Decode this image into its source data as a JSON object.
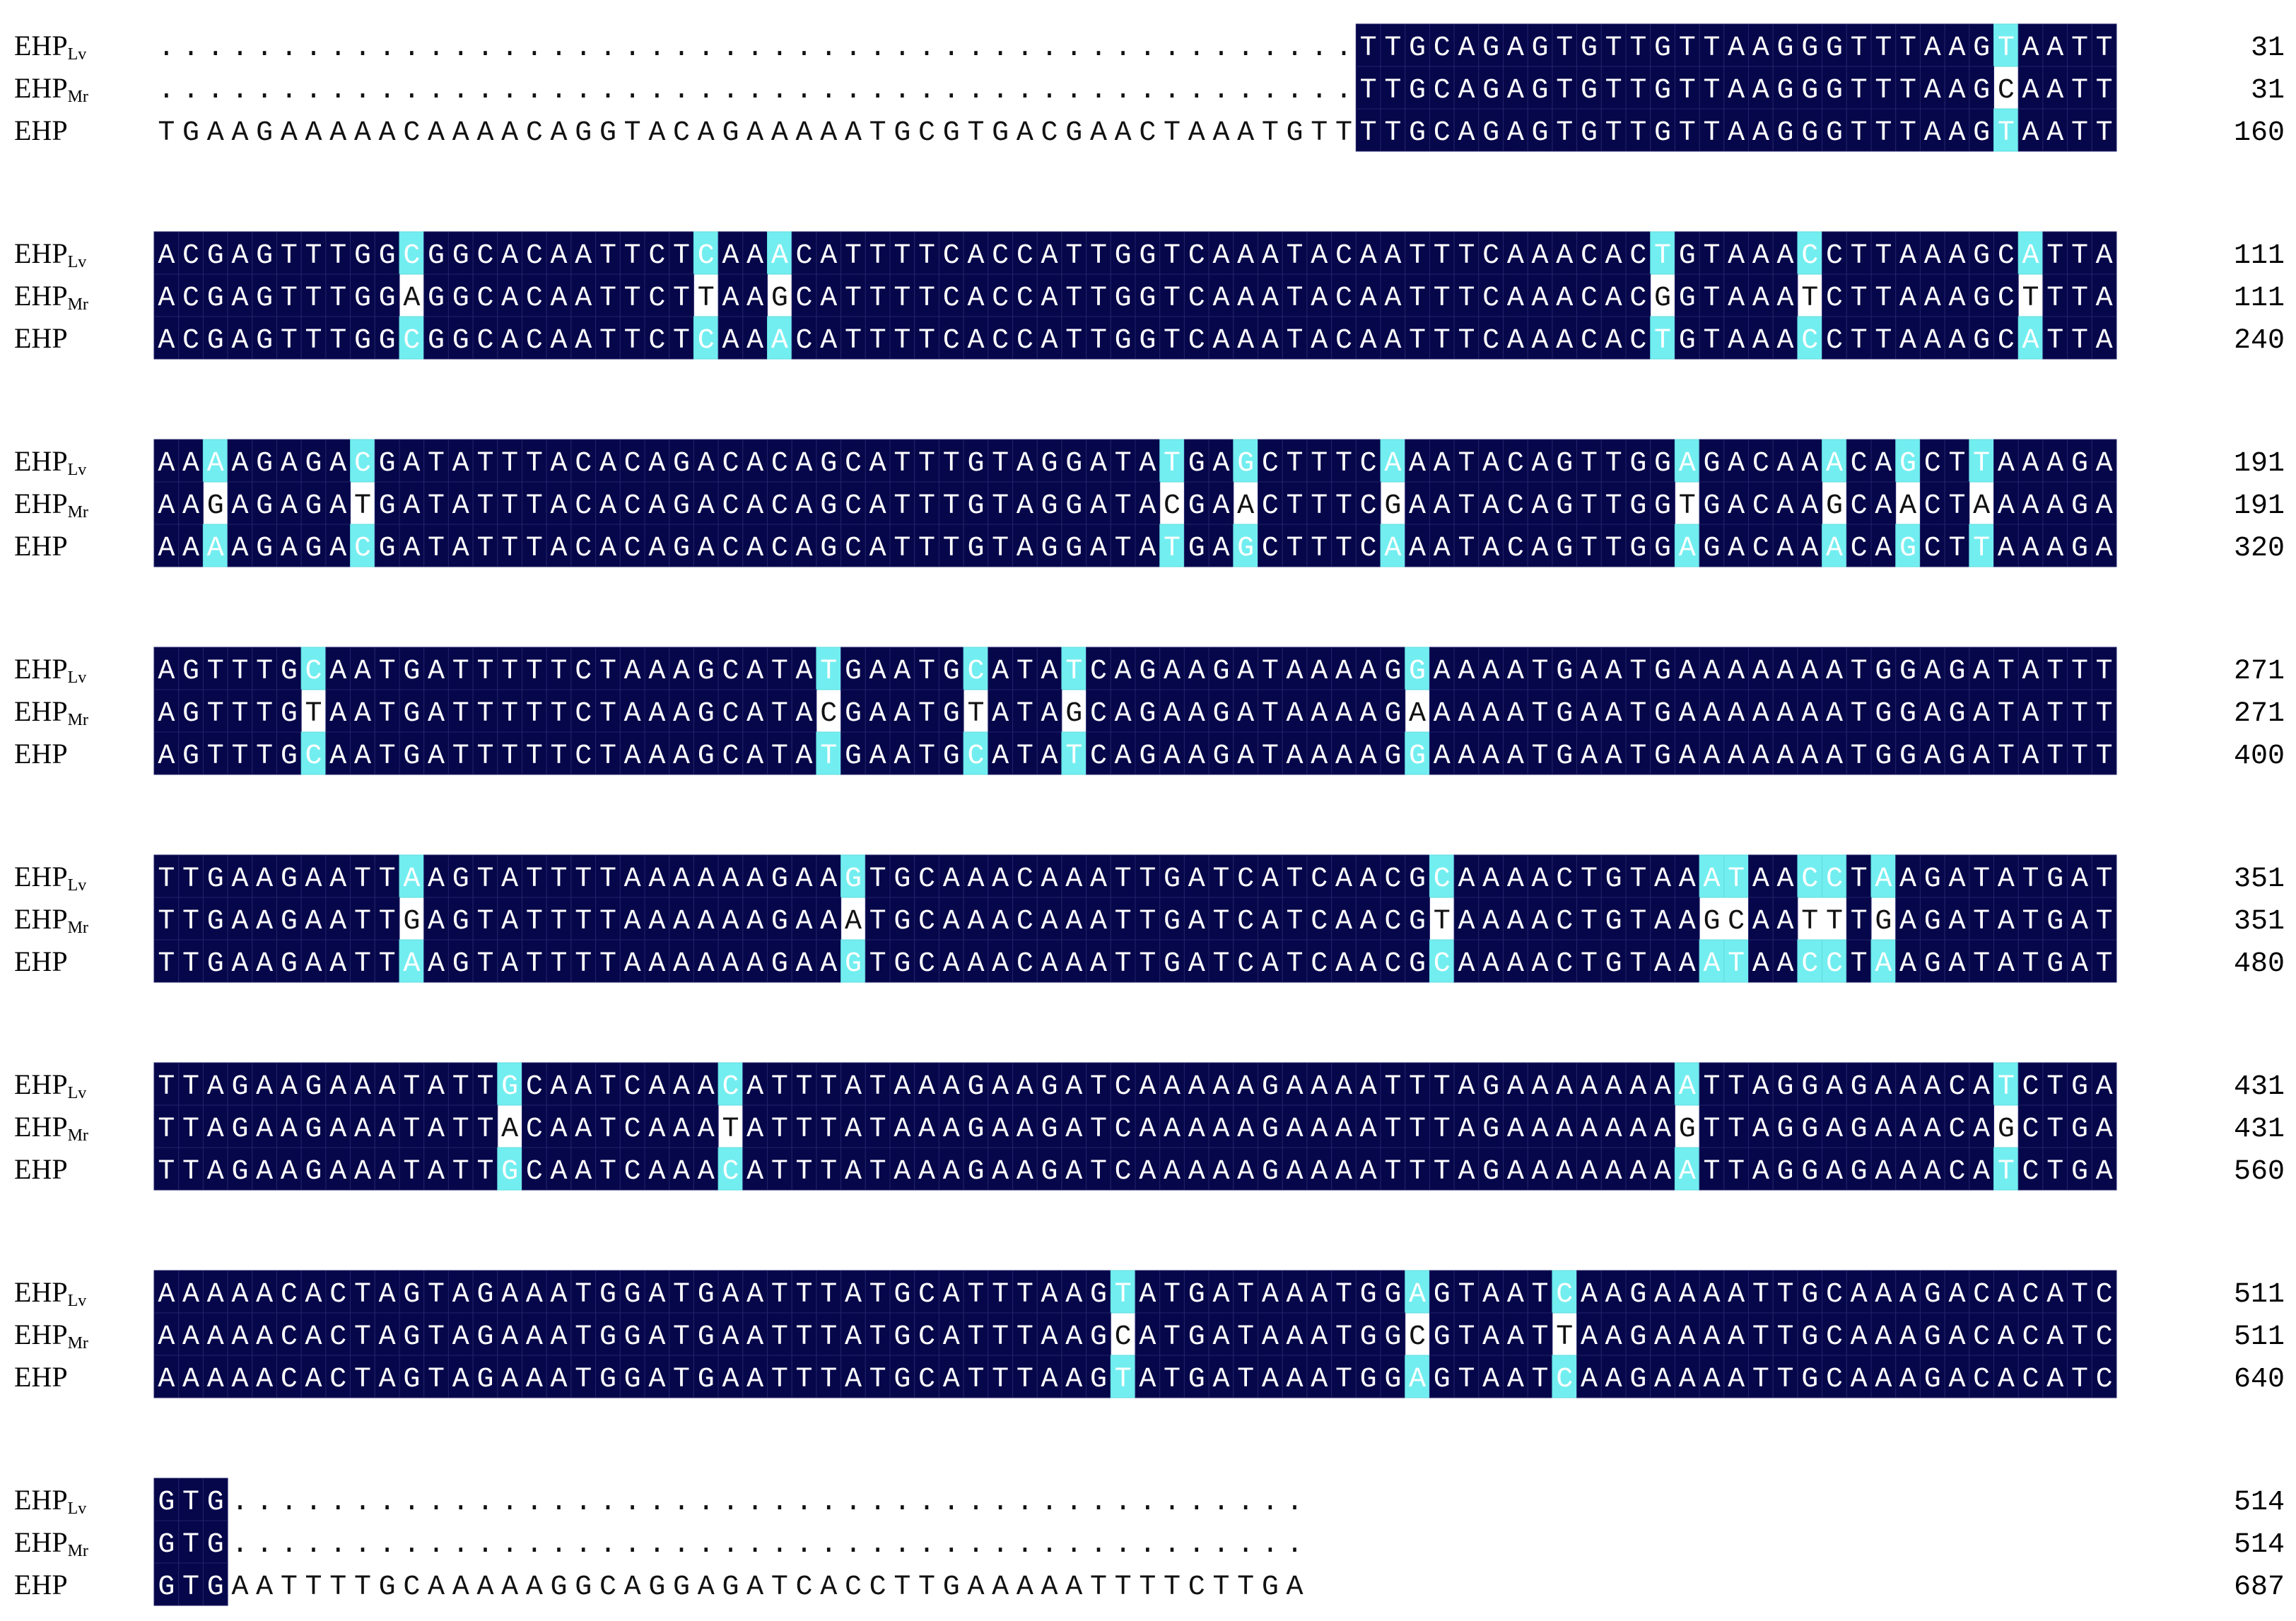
{
  "blocks": [
    {
      "rows": [
        {
          "name": "EHP",
          "sub": "Lv",
          "seq": ".................................................TTGCAGAGTGTTGTTAAGGGTTTAAGTAATT",
          "end": 31
        },
        {
          "name": "EHP",
          "sub": "Mr",
          "seq": ".................................................TTGCAGAGTGTTGTTAAGGGTTTAAGCAATT",
          "end": 31
        },
        {
          "name": "EHP",
          "seq": "TGAAGAAAAACAAAACAGGTACAGAAAAATGCGTGACGAACTAAATGTTTTGCAGAGTGTTGTTAAGGGTTTAAGTAATT",
          "end": 160
        }
      ]
    },
    {
      "rows": [
        {
          "name": "EHP",
          "sub": "Lv",
          "seq": "ACGAGTTTGGCGGCACAATTCTCAAACATTTTCACCATTGGTCAAATACAATTTCAAACACTGTAAACCTTAAAGCATTA",
          "end": 111
        },
        {
          "name": "EHP",
          "sub": "Mr",
          "seq": "ACGAGTTTGGAGGCACAATTCTTAAGCATTTTCACCATTGGTCAAATACAATTTCAAACACGGTAAATCTTAAAGCTTTA",
          "end": 111
        },
        {
          "name": "EHP",
          "seq": "ACGAGTTTGGCGGCACAATTCTCAAACATTTTCACCATTGGTCAAATACAATTTCAAACACTGTAAACCTTAAAGCATTA",
          "end": 240
        }
      ]
    },
    {
      "rows": [
        {
          "name": "EHP",
          "sub": "Lv",
          "seq": "AAAAGAGACGATATTTACACAGACACAGCATTTGTAGGATATGAGCTTTCAAATACAGTTGGAGACAAACAGCTTAAAGA",
          "end": 191
        },
        {
          "name": "EHP",
          "sub": "Mr",
          "seq": "AAGAGAGATGATATTTACACAGACACAGCATTTGTAGGATACGAACTTTCGAATACAGTTGGTGACAAGCAACTAAAAGA",
          "end": 191
        },
        {
          "name": "EHP",
          "seq": "AAAAGAGACGATATTTACACAGACACAGCATTTGTAGGATATGAGCTTTCAAATACAGTTGGAGACAAACAGCTTAAAGA",
          "end": 320
        }
      ]
    },
    {
      "rows": [
        {
          "name": "EHP",
          "sub": "Lv",
          "seq": "AGTTTGCAATGATTTTTCTAAAGCATATGAATGCATATCAGAAGATAAAAGGAAAATGAATGAAAAAAATGGAGATATTT",
          "end": 271
        },
        {
          "name": "EHP",
          "sub": "Mr",
          "seq": "AGTTTGTAATGATTTTTCTAAAGCATACGAATGTATAGCAGAAGATAAAAGAAAAATGAATGAAAAAAATGGAGATATTT",
          "end": 271
        },
        {
          "name": "EHP",
          "seq": "AGTTTGCAATGATTTTTCTAAAGCATATGAATGCATATCAGAAGATAAAAGGAAAATGAATGAAAAAAATGGAGATATTT",
          "end": 400
        }
      ]
    },
    {
      "rows": [
        {
          "name": "EHP",
          "sub": "Lv",
          "seq": "TTGAAGAATTAAGTATTTTAAAAAAGAAGTGCAAACAAATTGATCATCAACGCAAAACTGTAAATAACCTAAGATATGAT",
          "end": 351
        },
        {
          "name": "EHP",
          "sub": "Mr",
          "seq": "TTGAAGAATTGAGTATTTTAAAAAAGAAATGCAAACAAATTGATCATCAACGTAAAACTGTAAGCAATTTGAGATATGAT",
          "end": 351
        },
        {
          "name": "EHP",
          "seq": "TTGAAGAATTAAGTATTTTAAAAAAGAAGTGCAAACAAATTGATCATCAACGCAAAACTGTAAATAACCTAAGATATGAT",
          "end": 480
        }
      ]
    },
    {
      "rows": [
        {
          "name": "EHP",
          "sub": "Lv",
          "seq": "TTAGAAGAAATATTGCAATCAAACATTTATAAAGAAGATCAAAAAGAAAATTTAGAAAAAAAATTAGGAGAAACATCTGA",
          "end": 431
        },
        {
          "name": "EHP",
          "sub": "Mr",
          "seq": "TTAGAAGAAATATTACAATCAAATATTTATAAAGAAGATCAAAAAGAAAATTTAGAAAAAAAGTTAGGAGAAACAGCTGA",
          "end": 431
        },
        {
          "name": "EHP",
          "seq": "TTAGAAGAAATATTGCAATCAAACATTTATAAAGAAGATCAAAAAGAAAATTTAGAAAAAAAATTAGGAGAAACATCTGA",
          "end": 560
        }
      ]
    },
    {
      "rows": [
        {
          "name": "EHP",
          "sub": "Lv",
          "seq": "AAAAACACTAGTAGAAATGGATGAATTTATGCATTTAAGTATGATAAATGGAGTAATCAAGAAAATTGCAAAGACACATC",
          "end": 511
        },
        {
          "name": "EHP",
          "sub": "Mr",
          "seq": "AAAAACACTAGTAGAAATGGATGAATTTATGCATTTAAGCATGATAAATGGCGTAATTAAGAAAATTGCAAAGACACATC",
          "end": 511
        },
        {
          "name": "EHP",
          "seq": "AAAAACACTAGTAGAAATGGATGAATTTATGCATTTAAGTATGATAAATGGAGTAATCAAGAAAATTGCAAAGACACATC",
          "end": 640
        }
      ]
    },
    {
      "rows": [
        {
          "name": "EHP",
          "sub": "Lv",
          "seq": "GTG............................................",
          "end": 514
        },
        {
          "name": "EHP",
          "sub": "Mr",
          "seq": "GTG............................................",
          "end": 514
        },
        {
          "name": "EHP",
          "seq": "GTGAATTTTGCAAAAAGGCAGGAGATCACCTTGAAAAATTTTCTTGA",
          "end": 687
        }
      ]
    }
  ]
}
